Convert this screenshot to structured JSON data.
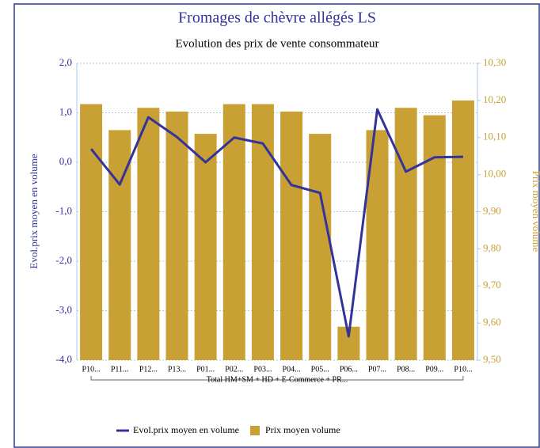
{
  "chart_data": {
    "type": "combo",
    "title": "Fromages de chèvre allégés LS",
    "subtitle": "Evolution des prix de vente consommateur",
    "ylabel": "Evol.prix moyen en volume",
    "y2label": "Prix moyen volume",
    "group_label": "Total HM+SM + HD + E-Commerce + PR...",
    "categories": [
      "P10...",
      "P11...",
      "P12...",
      "P13...",
      "P01...",
      "P02...",
      "P03...",
      "P04...",
      "P05...",
      "P06...",
      "P07...",
      "P08...",
      "P09...",
      "P10..."
    ],
    "series": [
      {
        "name": "Evol.prix moyen en volume",
        "type": "line",
        "axis": "y",
        "color": "#33339a",
        "values": [
          0.27,
          -0.45,
          0.91,
          0.51,
          0.0,
          0.5,
          0.38,
          -0.46,
          -0.62,
          -3.52,
          1.07,
          -0.19,
          0.1,
          0.11
        ]
      },
      {
        "name": "Prix moyen volume",
        "type": "bar",
        "axis": "y2",
        "color": "#c9a034",
        "values": [
          10.19,
          10.12,
          10.18,
          10.17,
          10.11,
          10.19,
          10.19,
          10.17,
          10.11,
          9.59,
          10.12,
          10.18,
          10.16,
          10.2
        ]
      }
    ],
    "ylim": [
      -4,
      2
    ],
    "yticks": [
      {
        "value": 2,
        "label": "2,0"
      },
      {
        "value": 1,
        "label": "1,0"
      },
      {
        "value": 0,
        "label": "0,0"
      },
      {
        "value": -1,
        "label": "-1,0"
      },
      {
        "value": -2,
        "label": "-2,0"
      },
      {
        "value": -3,
        "label": "-3,0"
      },
      {
        "value": -4,
        "label": "-4,0"
      }
    ],
    "y2lim": [
      9.5,
      10.3
    ],
    "y2ticks": [
      {
        "value": 10.3,
        "label": "10,30"
      },
      {
        "value": 10.2,
        "label": "10,20"
      },
      {
        "value": 10.1,
        "label": "10,10"
      },
      {
        "value": 10.0,
        "label": "10,00"
      },
      {
        "value": 9.9,
        "label": "9,90"
      },
      {
        "value": 9.8,
        "label": "9,80"
      },
      {
        "value": 9.7,
        "label": "9,70"
      },
      {
        "value": 9.6,
        "label": "9,60"
      },
      {
        "value": 9.5,
        "label": "9,50"
      }
    ],
    "grid": true
  }
}
